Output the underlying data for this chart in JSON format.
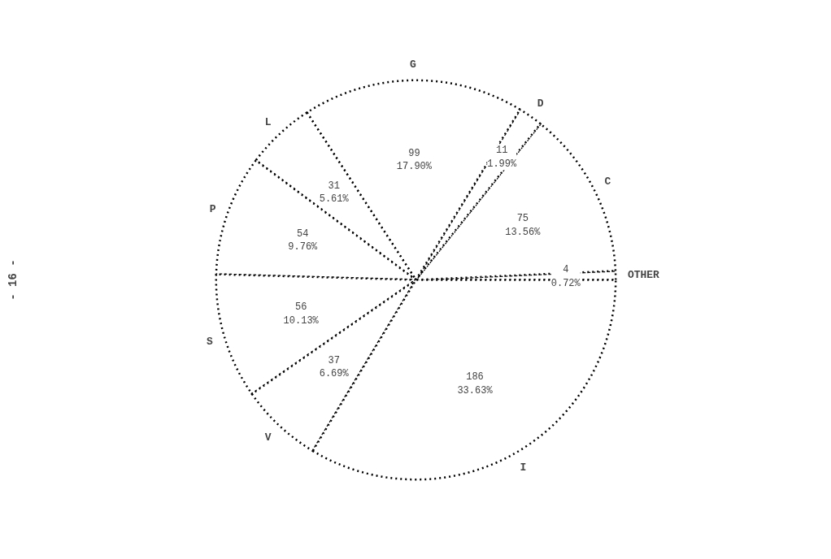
{
  "chart_data": {
    "type": "pie",
    "categories": [
      "OTHER",
      "C",
      "D",
      "G",
      "L",
      "P",
      "S",
      "V",
      "I"
    ],
    "values": [
      4,
      75,
      11,
      99,
      31,
      54,
      56,
      37,
      186
    ],
    "value_labels": [
      "4\n0.72%",
      "75\n13.56%",
      "11\n1.99%",
      "99\n17.90%",
      "31\n5.61%",
      "54\n9.76%",
      "56\n10.13%",
      "37\n6.69%",
      "186\n33.63%"
    ],
    "colors": [
      "#ffffff",
      "#ffffff",
      "#ffffff",
      "#ffffff",
      "#ffffff",
      "#ffffff",
      "#ffffff",
      "#ffffff",
      "#ffffff"
    ],
    "annotations": [
      "- 16 -"
    ]
  }
}
